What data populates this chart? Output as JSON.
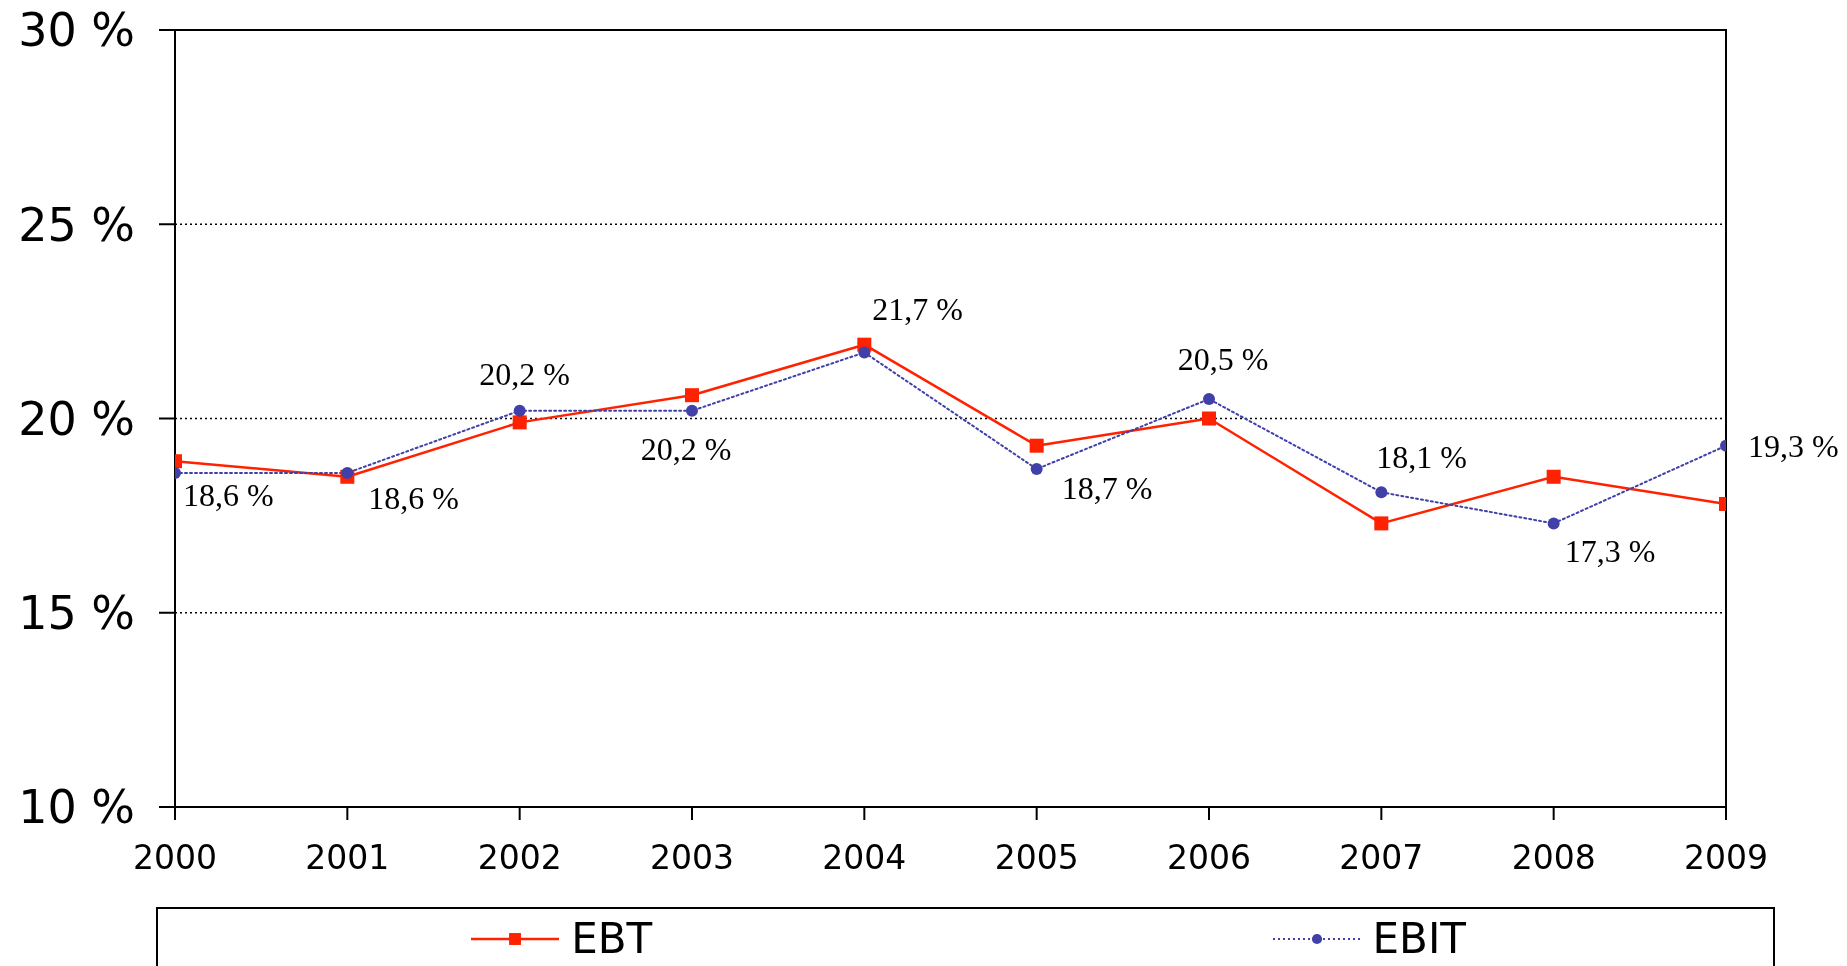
{
  "chart_data": {
    "type": "line",
    "categories": [
      "2000",
      "2001",
      "2002",
      "2003",
      "2004",
      "2005",
      "2006",
      "2007",
      "2008",
      "2009"
    ],
    "ylim": [
      10,
      30
    ],
    "yticks": [
      {
        "value": 10,
        "label": "10 %"
      },
      {
        "value": 15,
        "label": "15 %"
      },
      {
        "value": 20,
        "label": "20 %"
      },
      {
        "value": 25,
        "label": "25 %"
      },
      {
        "value": 30,
        "label": "30 %"
      }
    ],
    "grid": "y",
    "legend": "bottom",
    "series": [
      {
        "name": "EBT",
        "color": "#ff2200",
        "marker": "square",
        "line_style": "solid",
        "values": [
          18.9,
          18.5,
          19.9,
          20.6,
          21.9,
          19.3,
          20.0,
          17.3,
          18.5,
          17.8
        ]
      },
      {
        "name": "EBIT",
        "color": "#4040a8",
        "marker": "circle",
        "line_style": "dotted",
        "values": [
          18.6,
          18.6,
          20.2,
          20.2,
          21.7,
          18.7,
          20.5,
          18.1,
          17.3,
          19.3
        ],
        "value_labels": [
          "18,6 %",
          "18,6 %",
          "20,2 %",
          "20,2 %",
          "21,7 %",
          "18,7 %",
          "20,5 %",
          "18,1 %",
          "17,3 %",
          "19,3 %"
        ]
      }
    ]
  }
}
